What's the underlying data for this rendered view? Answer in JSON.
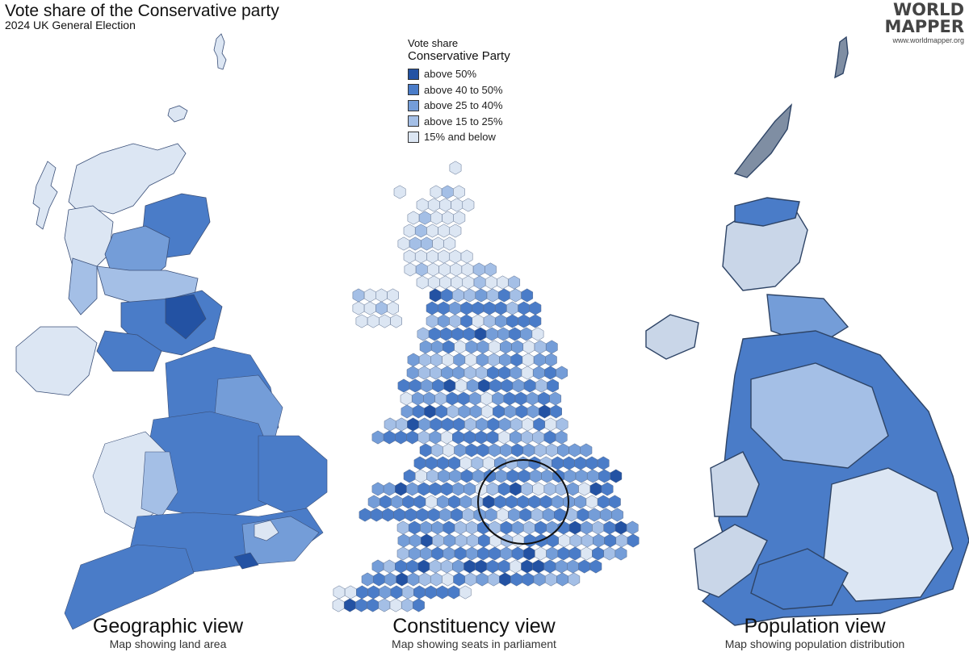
{
  "header": {
    "title": "Vote share of the Conservative party",
    "subtitle": "2024 UK General Election"
  },
  "logo": {
    "line1": "WORLD",
    "line2": "MAPPER",
    "url": "www.worldmapper.org"
  },
  "legend": {
    "title_line1": "Vote share",
    "title_line2": "Conservative Party",
    "items": [
      {
        "label": "above 50%",
        "color": "#2352a3"
      },
      {
        "label": "above 40 to 50%",
        "color": "#4a7cc8"
      },
      {
        "label": "above 25 to 40%",
        "color": "#749dd8"
      },
      {
        "label": "above 15 to 25%",
        "color": "#a4bfe6"
      },
      {
        "label": "15% and below",
        "color": "#dce6f3"
      }
    ]
  },
  "views": [
    {
      "title": "Geographic view",
      "subtitle": "Map showing land area"
    },
    {
      "title": "Constituency view",
      "subtitle": "Map showing seats in parliament"
    },
    {
      "title": "Population view",
      "subtitle": "Map showing population distribution"
    }
  ]
}
